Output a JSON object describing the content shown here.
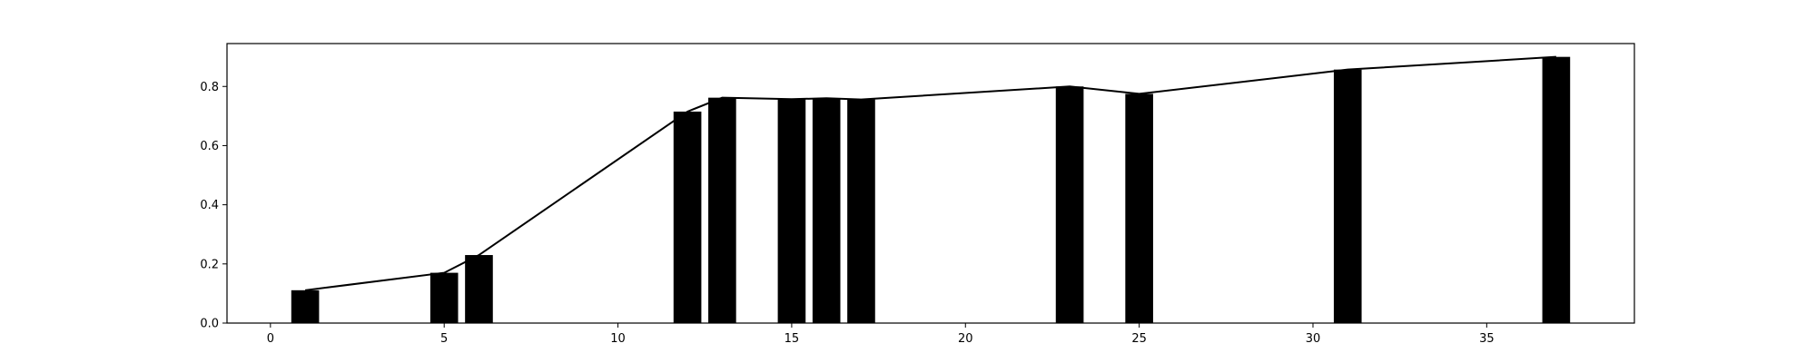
{
  "chart_data": {
    "type": "bar",
    "title": "",
    "xlabel": "",
    "ylabel": "",
    "xlim": [
      -1.25,
      39.25
    ],
    "ylim": [
      0,
      0.945
    ],
    "grid": false,
    "bar_width": 0.8,
    "colors": {
      "bars": "#000000",
      "line": "#000000",
      "axes": "#000000",
      "background": "#ffffff"
    },
    "x": [
      1,
      5,
      6,
      12,
      13,
      15,
      16,
      17,
      23,
      25,
      31,
      37
    ],
    "values": [
      0.111,
      0.17,
      0.23,
      0.715,
      0.762,
      0.757,
      0.76,
      0.756,
      0.8,
      0.775,
      0.857,
      0.9
    ],
    "line": {
      "x": [
        1,
        5,
        6,
        12,
        13,
        15,
        16,
        17,
        23,
        25,
        31,
        37
      ],
      "y": [
        0.111,
        0.17,
        0.23,
        0.715,
        0.762,
        0.757,
        0.76,
        0.756,
        0.8,
        0.775,
        0.857,
        0.9
      ]
    },
    "x_ticks": [
      {
        "value": 0,
        "label": "0"
      },
      {
        "value": 5,
        "label": "5"
      },
      {
        "value": 10,
        "label": "10"
      },
      {
        "value": 15,
        "label": "15"
      },
      {
        "value": 20,
        "label": "20"
      },
      {
        "value": 25,
        "label": "25"
      },
      {
        "value": 30,
        "label": "30"
      },
      {
        "value": 35,
        "label": "35"
      }
    ],
    "y_ticks": [
      {
        "value": 0.0,
        "label": "0.0"
      },
      {
        "value": 0.2,
        "label": "0.2"
      },
      {
        "value": 0.4,
        "label": "0.4"
      },
      {
        "value": 0.6,
        "label": "0.6"
      },
      {
        "value": 0.8,
        "label": "0.8"
      }
    ]
  }
}
